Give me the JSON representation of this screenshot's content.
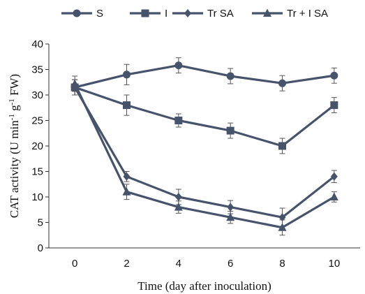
{
  "chart_data": {
    "type": "line",
    "title": "",
    "xlabel": "Time (day after inoculation)",
    "ylabel_main": "CAT activity (U min",
    "ylabel_sup1": "-1",
    "ylabel_mid": " g",
    "ylabel_sup2": "-1",
    "ylabel_end": " FW)",
    "x": [
      0,
      2,
      4,
      6,
      8,
      10
    ],
    "xlim": [
      -1,
      11
    ],
    "ylim": [
      0,
      40
    ],
    "yticks": [
      0,
      5,
      10,
      15,
      20,
      25,
      30,
      35,
      40
    ],
    "grid": false,
    "legend_position": "top",
    "line_color": "#46536b",
    "series": [
      {
        "name": "S",
        "marker": "circle",
        "values": [
          31.5,
          34,
          35.8,
          33.7,
          32.3,
          33.8
        ],
        "errors": [
          1.5,
          2.0,
          1.5,
          1.5,
          1.5,
          1.5
        ]
      },
      {
        "name": "I",
        "marker": "square",
        "values": [
          31.5,
          28,
          25,
          23,
          20,
          28
        ],
        "errors": [
          1.5,
          2.0,
          1.3,
          1.5,
          1.5,
          1.5
        ]
      },
      {
        "name": "Tr SA",
        "marker": "diamond",
        "values": [
          31.5,
          14,
          10,
          8,
          6,
          14
        ],
        "errors": [
          1.5,
          1.0,
          1.5,
          1.3,
          1.8,
          1.2
        ]
      },
      {
        "name": "Tr + I SA",
        "marker": "triangle",
        "values": [
          32.2,
          11,
          8,
          6,
          4,
          10
        ],
        "errors": [
          1.5,
          1.5,
          1.2,
          1.2,
          1.5,
          1.0
        ]
      }
    ]
  }
}
